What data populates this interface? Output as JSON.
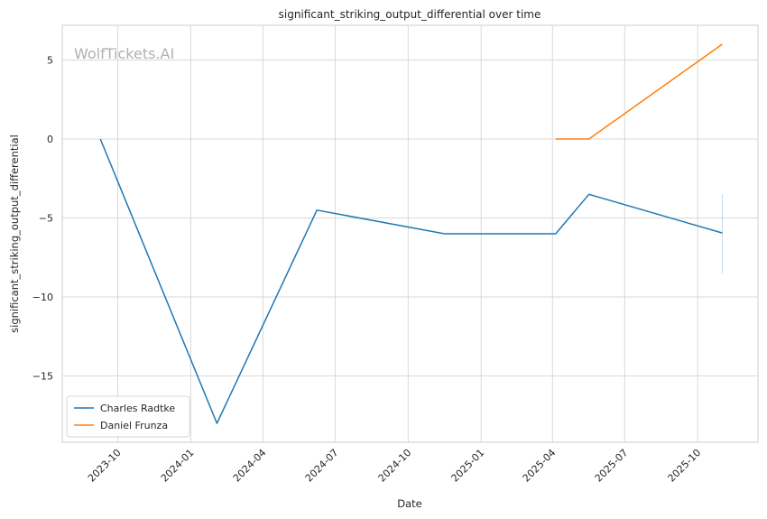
{
  "chart_data": {
    "type": "line",
    "title": "significant_striking_output_differential over time",
    "xlabel": "Date",
    "ylabel": "significant_striking_output_differential",
    "watermark": "WolfTickets.AI",
    "x_axis_type": "date",
    "xlim": [
      "2023-07-23",
      "2025-12-16"
    ],
    "ylim": [
      -19.2,
      7.2
    ],
    "x_ticks": [
      "2023-10-01",
      "2024-01-01",
      "2024-04-01",
      "2024-07-01",
      "2024-10-01",
      "2025-01-01",
      "2025-04-01",
      "2025-07-01",
      "2025-10-01"
    ],
    "x_tick_labels": [
      "2023-10",
      "2024-01",
      "2024-04",
      "2024-07",
      "2024-10",
      "2025-01",
      "2025-04",
      "2025-07",
      "2025-10"
    ],
    "y_ticks": [
      5,
      0,
      -5,
      -10,
      -15
    ],
    "y_tick_labels": [
      "5",
      "0",
      "−5",
      "−10",
      "−15"
    ],
    "grid": true,
    "legend_position": "lower-left",
    "series": [
      {
        "name": "Charles Radtke",
        "color": "#1f77b4",
        "points": [
          {
            "x": "2023-09-09",
            "y": 0
          },
          {
            "x": "2024-02-03",
            "y": -18
          },
          {
            "x": "2024-06-08",
            "y": -4.5
          },
          {
            "x": "2024-11-16",
            "y": -6
          },
          {
            "x": "2025-04-05",
            "y": -6
          },
          {
            "x": "2025-05-17",
            "y": -3.5
          },
          {
            "x": "2025-11-01",
            "y": -5.95
          }
        ]
      },
      {
        "name": "Daniel Frunza",
        "color": "#ff7f0e",
        "points": [
          {
            "x": "2025-04-05",
            "y": 0
          },
          {
            "x": "2025-05-17",
            "y": 0
          },
          {
            "x": "2025-11-01",
            "y": 6
          }
        ]
      }
    ],
    "band": {
      "x": "2025-11-01",
      "y_low": -8.5,
      "y_high": -3.5,
      "color": "#1f77b4"
    }
  }
}
